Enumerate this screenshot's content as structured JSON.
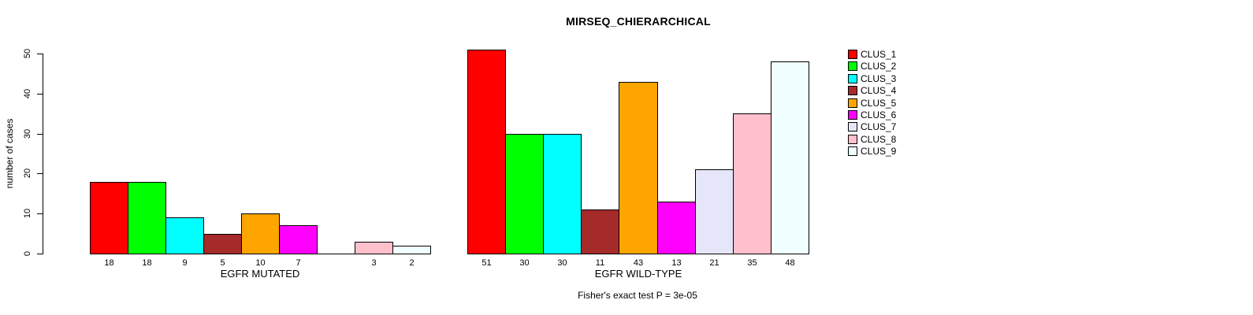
{
  "chart_data": {
    "type": "bar",
    "title": "MIRSEQ_CHIERARCHICAL",
    "ylabel": "number of cases",
    "ylim": [
      0,
      50
    ],
    "yticks": [
      0,
      10,
      20,
      30,
      40,
      50
    ],
    "grid": false,
    "legend_position": "right-top",
    "clusters": [
      "CLUS_1",
      "CLUS_2",
      "CLUS_3",
      "CLUS_4",
      "CLUS_5",
      "CLUS_6",
      "CLUS_7",
      "CLUS_8",
      "CLUS_9"
    ],
    "colors": [
      "#FF0000",
      "#00FF00",
      "#00FFFF",
      "#A52A2A",
      "#FFA500",
      "#FF00FF",
      "#E6E6FA",
      "#FFC0CB",
      "#F0FFFF"
    ],
    "panels": [
      {
        "xlabel": "EGFR MUTATED",
        "values": [
          18,
          18,
          9,
          5,
          10,
          7,
          0,
          3,
          2
        ],
        "bar_labels": [
          "18",
          "18",
          "9",
          "5",
          "10",
          "7",
          "",
          "3",
          "2"
        ]
      },
      {
        "xlabel": "EGFR WILD-TYPE",
        "values": [
          51,
          30,
          30,
          11,
          43,
          13,
          21,
          35,
          48
        ],
        "bar_labels": [
          "51",
          "30",
          "30",
          "11",
          "43",
          "13",
          "21",
          "35",
          "48"
        ]
      }
    ],
    "annotation": "Fisher's exact test P = 3e-05"
  }
}
